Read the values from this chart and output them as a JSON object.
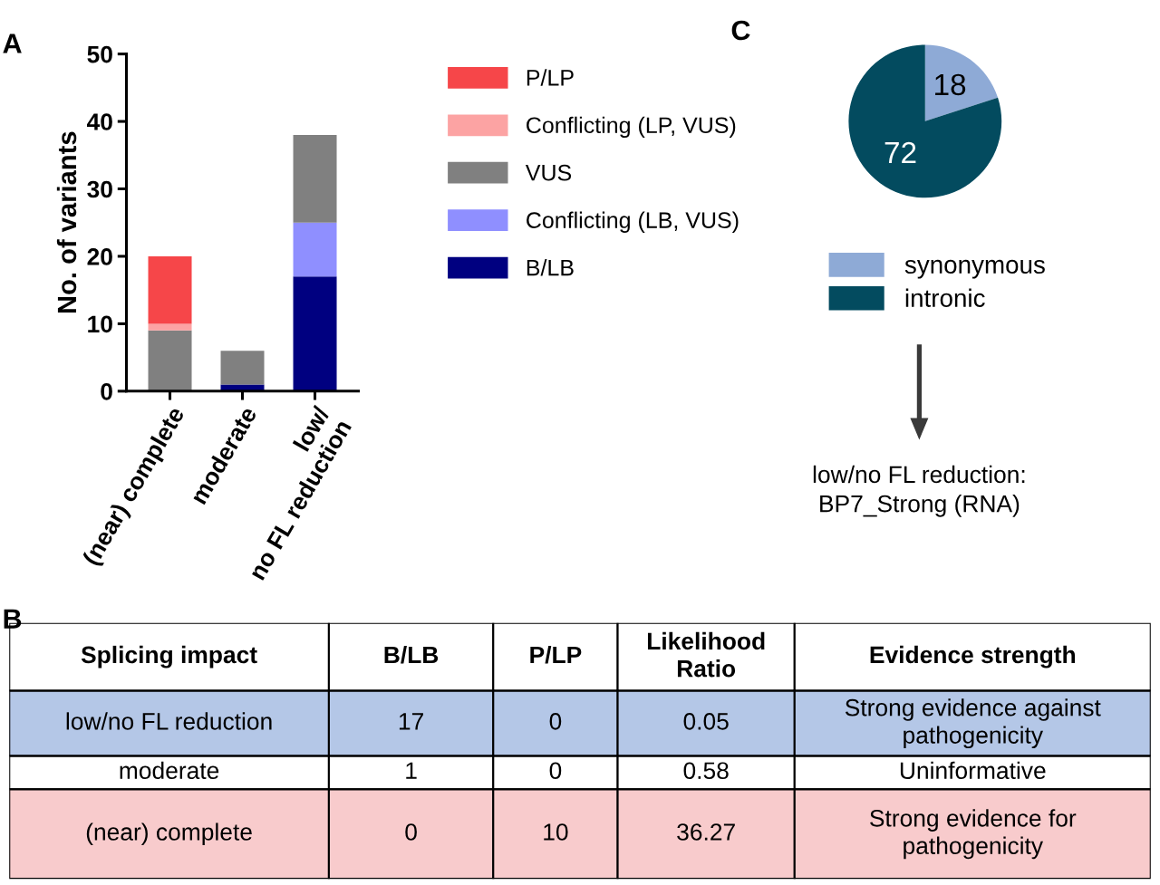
{
  "chart_data": [
    {
      "type": "bar",
      "title": "A",
      "ylabel": "No. of variants",
      "categories": [
        "(near) complete",
        "moderate",
        "low/\nno FL reduction"
      ],
      "stacked": true,
      "ylim": [
        0,
        50
      ],
      "yticks": [
        0,
        10,
        20,
        30,
        40,
        50
      ],
      "legend": "right",
      "series": [
        {
          "name": "B/LB",
          "color": "#000080",
          "values": [
            0,
            1,
            17
          ]
        },
        {
          "name": "Conflicting (LB, VUS)",
          "color": "#8f8fff",
          "values": [
            0,
            0,
            8
          ]
        },
        {
          "name": "VUS",
          "color": "#808080",
          "values": [
            9,
            5,
            13
          ]
        },
        {
          "name": "Conflicting (LP, VUS)",
          "color": "#fca3a3",
          "values": [
            1,
            0,
            0
          ]
        },
        {
          "name": "P/LP",
          "color": "#f64649",
          "values": [
            10,
            0,
            0
          ]
        }
      ]
    },
    {
      "type": "other",
      "title": "B",
      "colors": [
        "#ffffff",
        "#b4c7e7",
        "#ffffff",
        "#f8cbcc"
      ],
      "annotations": [
        "Splicing impact",
        "B/LB",
        "P/LP",
        "Likelihood\nRatio",
        "Evidence strength",
        "low/no FL reduction",
        "17",
        "0",
        "0.05",
        "Strong evidence against\npathogenicity",
        "moderate",
        "1",
        "0",
        "0.58",
        "Uninformative",
        "(near) complete",
        "0",
        "10",
        "36.27",
        "Strong evidence for\npathogenicity"
      ]
    },
    {
      "type": "pie",
      "title": "C",
      "categories": [
        "synonymous",
        "intronic"
      ],
      "values": [
        18,
        72
      ],
      "colors": [
        "#8eaad6",
        "#034b5f"
      ],
      "data_labels": true,
      "legend": "bottom",
      "annotations": [
        "low/no FL reduction:\nBP7_Strong (RNA)"
      ]
    }
  ]
}
